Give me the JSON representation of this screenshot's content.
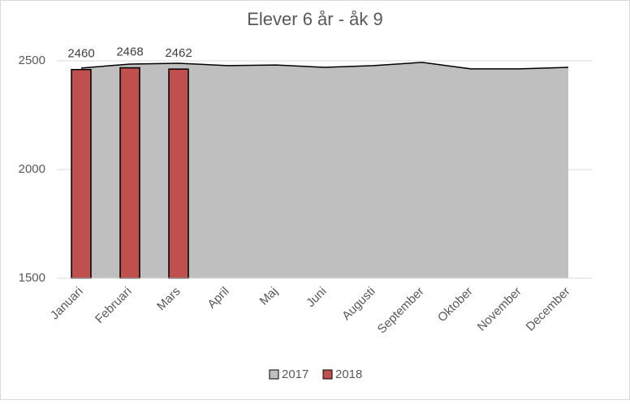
{
  "chart_data": {
    "type": "area-bar",
    "title": "Elever 6 år - åk 9",
    "categories": [
      "Januari",
      "Februari",
      "Mars",
      "April",
      "Maj",
      "Juni",
      "Augusti",
      "September",
      "Oktober",
      "November",
      "December"
    ],
    "series": [
      {
        "name": "2017",
        "type": "area",
        "color": "#bfbfbf",
        "values": [
          2467,
          2485,
          2489,
          2478,
          2481,
          2470,
          2478,
          2493,
          2463,
          2463,
          2470
        ]
      },
      {
        "name": "2018",
        "type": "bar",
        "color": "#c0504d",
        "values": [
          2460,
          2468,
          2462,
          null,
          null,
          null,
          null,
          null,
          null,
          null,
          null
        ]
      }
    ],
    "ylim": [
      1500,
      2500
    ],
    "yticks": [
      1500,
      2000,
      2500
    ],
    "grid": true,
    "legend": "bottom"
  }
}
